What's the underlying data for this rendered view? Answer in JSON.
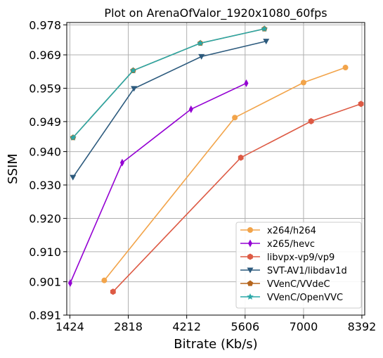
{
  "chart_data": {
    "type": "line",
    "title": "Plot on ArenaOfValor_1920x1080_60fps",
    "xlabel": "Bitrate (Kb/s)",
    "ylabel": "SSIM",
    "xlim": [
      1350,
      8460
    ],
    "ylim": [
      0.891,
      0.9787
    ],
    "xticks": [
      1424,
      2818,
      4212,
      5606,
      7000,
      8392
    ],
    "xtick_labels": [
      "1424",
      "2818",
      "4212",
      "5606",
      "7000",
      "8392"
    ],
    "yticks": [
      0.891,
      0.901,
      0.91,
      0.92,
      0.93,
      0.94,
      0.949,
      0.959,
      0.969,
      0.978
    ],
    "ytick_labels": [
      "0.891",
      "0.901",
      "0.910",
      "0.920",
      "0.930",
      "0.940",
      "0.949",
      "0.959",
      "0.969",
      "0.978"
    ],
    "grid": true,
    "legend_position": "lower-right",
    "series": [
      {
        "name": "x264/h264",
        "color": "#f2a44a",
        "marker": "circle",
        "x": [
          2245,
          5360,
          7000,
          8000
        ],
        "y": [
          0.9014,
          0.9502,
          0.9607,
          0.9652
        ]
      },
      {
        "name": "x265/hevc",
        "color": "#9400d3",
        "marker": "diamond",
        "x": [
          1432,
          2673,
          4315,
          5634
        ],
        "y": [
          0.9006,
          0.9367,
          0.9527,
          0.9605
        ]
      },
      {
        "name": "libvpx-vp9/vp9",
        "color": "#dd5a44",
        "marker": "hexagon",
        "x": [
          2454,
          5504,
          7180,
          8370
        ],
        "y": [
          0.898,
          0.9382,
          0.9491,
          0.9543
        ]
      },
      {
        "name": "SVT-AV1/libdav1d",
        "color": "#2c5a7d",
        "marker": "triangle-down",
        "x": [
          1497,
          2953,
          4564,
          6108
        ],
        "y": [
          0.9323,
          0.9589,
          0.9685,
          0.9731
        ]
      },
      {
        "name": "VVenC/VVdeC",
        "color": "#b5651d",
        "marker": "pentagon",
        "x": [
          1500,
          2935,
          4538,
          6066
        ],
        "y": [
          0.9442,
          0.9643,
          0.9725,
          0.9768
        ]
      },
      {
        "name": "VVenC/OpenVVC",
        "color": "#2aa8a8",
        "marker": "star",
        "x": [
          1500,
          2935,
          4538,
          6066
        ],
        "y": [
          0.9442,
          0.9643,
          0.9725,
          0.9768
        ]
      }
    ]
  }
}
